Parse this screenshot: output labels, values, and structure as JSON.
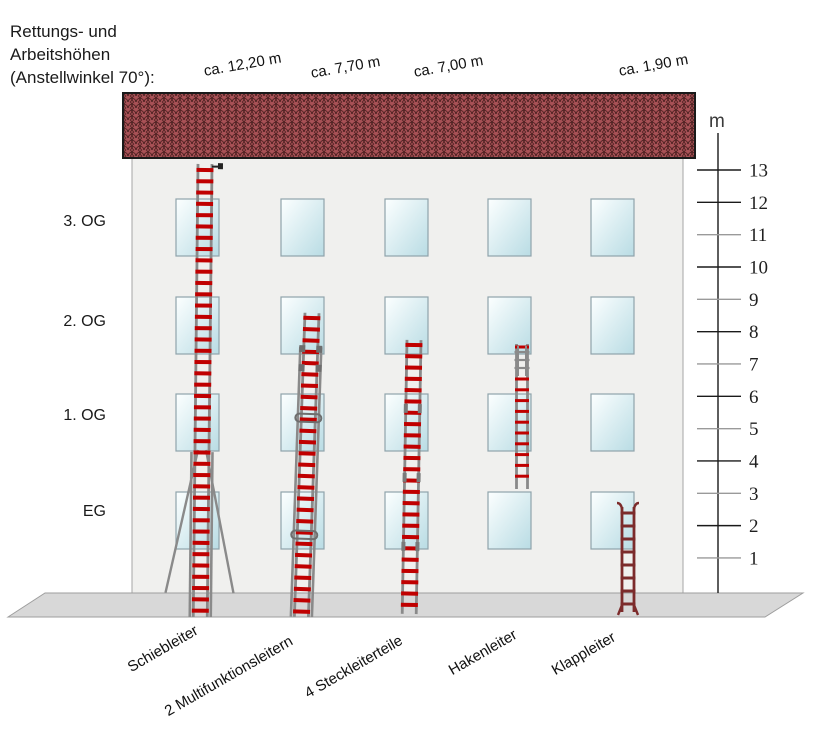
{
  "title": {
    "line1": "Rettungs- und",
    "line2": "Arbeitshöhen",
    "line3": "(Anstellwinkel 70°):"
  },
  "building": {
    "floor_labels": [
      "3. OG",
      "2. OG",
      "1. OG",
      "EG"
    ]
  },
  "scale": {
    "unit": "m",
    "ticks": [
      {
        "value": "13",
        "strong": true
      },
      {
        "value": "12",
        "strong": true
      },
      {
        "value": "11",
        "strong": false
      },
      {
        "value": "10",
        "strong": true
      },
      {
        "value": "9",
        "strong": false
      },
      {
        "value": "8",
        "strong": true
      },
      {
        "value": "7",
        "strong": false
      },
      {
        "value": "6",
        "strong": true
      },
      {
        "value": "5",
        "strong": false
      },
      {
        "value": "4",
        "strong": true
      },
      {
        "value": "3",
        "strong": false
      },
      {
        "value": "2",
        "strong": true
      },
      {
        "value": "1",
        "strong": false
      }
    ]
  },
  "ladders": [
    {
      "id": "schiebleiter",
      "label": "Schiebleiter",
      "height_label": "ca. 12,20 m",
      "height_m": 12.2
    },
    {
      "id": "multifunktionsleitern",
      "label": "2 Multifunktionsleitern",
      "height_label": "ca. 7,70 m",
      "height_m": 7.7
    },
    {
      "id": "steckleiterteile",
      "label": "4 Steckleiterteile",
      "height_label": "ca. 7,00 m",
      "height_m": 7.0
    },
    {
      "id": "hakenleiter",
      "label": "Hakenleiter",
      "height_label": null,
      "height_m": null
    },
    {
      "id": "klappleiter",
      "label": "Klappleiter",
      "height_label": "ca. 1,90 m",
      "height_m": 1.9
    }
  ],
  "colors": {
    "roof_fill": "#a85156",
    "roof_pattern": "#4f2222",
    "roof_border": "#1a1a1a",
    "facade": "#f0f0ee",
    "facade_border": "#a6a6a6",
    "window_light": "#fcffff",
    "window_dark": "#b9dce4",
    "window_border": "#8fa3ab",
    "ground": "#d8d8d8",
    "ground_border": "#9e9e9e",
    "ladder_rail": "#8a8a8a",
    "ladder_rung": "#c00000",
    "klappleiter_color": "#7c2b2b",
    "scale_strong": "#1a1a1a",
    "scale_weak": "#9a9a9a",
    "text": "#1a1a1a"
  }
}
